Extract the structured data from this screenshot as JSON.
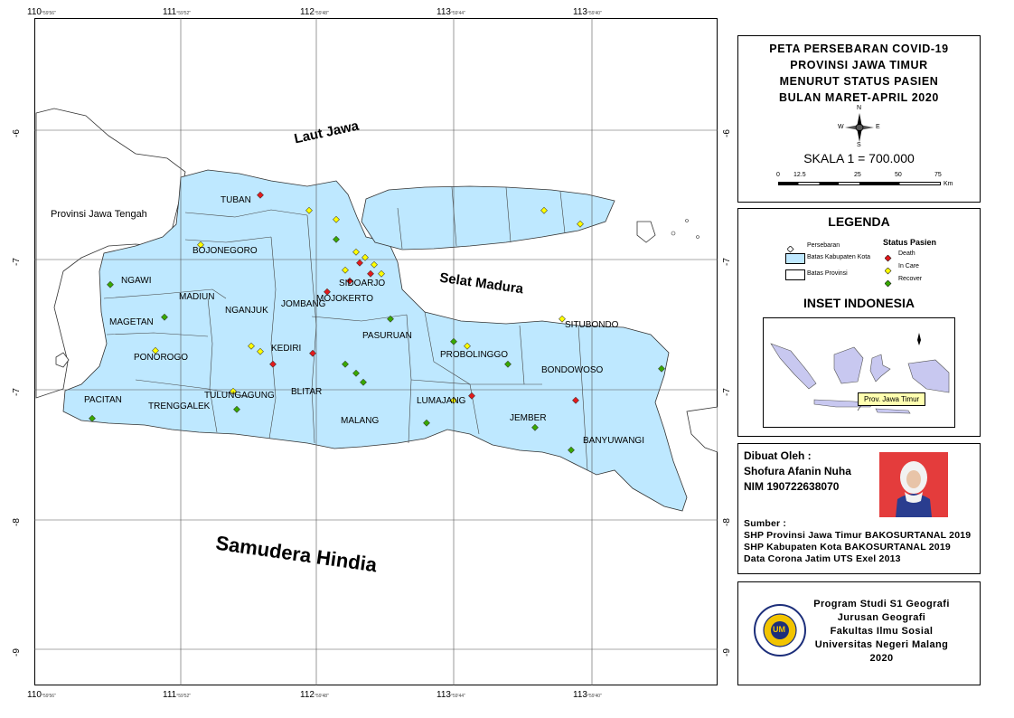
{
  "frame": {
    "top_ticks": [
      {
        "deg": "110",
        "min": "°59'56\""
      },
      {
        "deg": "111",
        "min": "°59'52\""
      },
      {
        "deg": "112",
        "min": "°59'48\""
      },
      {
        "deg": "113",
        "min": "°59'44\""
      },
      {
        "deg": "113",
        "min": "°59'40\""
      }
    ],
    "side_ticks": [
      "-6",
      "-7",
      "-7",
      "-8",
      "-9"
    ]
  },
  "map": {
    "sea_labels": [
      "Laut Jawa",
      "Selat Madura",
      "Samudera Hindia"
    ],
    "province_label": "Provinsi Jawa Tengah",
    "regions": [
      "TUBAN",
      "BOJONEGORO",
      "NGAWI",
      "MADIUN",
      "MAGETAN",
      "PONOROGO",
      "PACITAN",
      "TRENGGALEK",
      "TULUNGAGUNG",
      "BLITAR",
      "KEDIRI",
      "NGANJUK",
      "JOMBANG",
      "MOJOKERTO",
      "SIDOARJO",
      "PASURUAN",
      "PROBOLINGGO",
      "MALANG",
      "LUMAJANG",
      "JEMBER",
      "BONDOWOSO",
      "SITUBONDO",
      "BANYUWANGI"
    ]
  },
  "title_panel": {
    "lines": [
      "PETA PERSEBARAN COVID-19",
      "PROVINSI JAWA TIMUR",
      "MENURUT STATUS PASIEN",
      "BULAN MARET-APRIL 2020"
    ],
    "compass": {
      "n": "N",
      "s": "S",
      "e": "E",
      "w": "W"
    },
    "scale_text": "SKALA 1 = 700.000",
    "scale_ticks": [
      "0",
      "12.5",
      "25",
      "50",
      "75"
    ],
    "scale_unit": "Km"
  },
  "legend": {
    "heading": "LEGENDA",
    "items": [
      "Persebaran",
      "Batas Kabupaten Kota",
      "Batas Provinsi"
    ],
    "status_title": "Status Pasien",
    "status": [
      {
        "label": "Death",
        "color": "#e31a1c"
      },
      {
        "label": "In Care",
        "color": "#ffff00"
      },
      {
        "label": "Recover",
        "color": "#38a800"
      }
    ],
    "inset_heading": "INSET INDONESIA",
    "inset_label": "Prov. Jawa Timur"
  },
  "author": {
    "made_by": "Dibuat Oleh :",
    "name": "Shofura Afanin Nuha",
    "nim": "NIM 190722638070",
    "source_title": "Sumber :",
    "sources": [
      "SHP Provinsi Jawa Timur BAKOSURTANAL 2019",
      "SHP Kabupaten Kota BAKOSURTANAL 2019",
      "Data Corona Jatim UTS Exel 2013"
    ]
  },
  "institution": {
    "lines": [
      "Program Studi S1 Geografi",
      "Jurusan Geografi",
      "Fakultas Ilmu Sosial",
      "Universitas Negeri Malang",
      "2020"
    ],
    "logo_text": "UNIVERSITAS NEGERI MALANG",
    "logo_mark": "UM"
  },
  "colors": {
    "land": "#bee8ff",
    "death": "#e31a1c",
    "in_care": "#ffff00",
    "recover": "#38a800"
  }
}
